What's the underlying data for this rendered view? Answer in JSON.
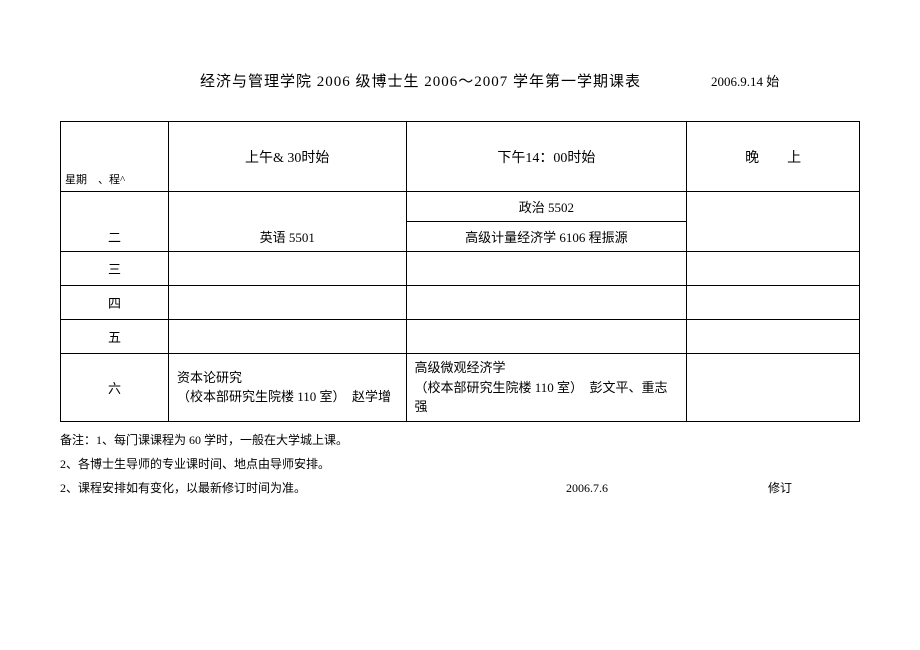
{
  "header": {
    "title": "经济与管理学院 2006 级博士生 2006〜2007 学年第一学期课表",
    "start_date": "2006.9.14 始"
  },
  "table": {
    "corner_label": "星期　、程^",
    "columns": {
      "morning": "上午& 30时始",
      "afternoon": "下午14：00时始",
      "evening": "晚　　上"
    },
    "rows": {
      "mon": {
        "day": "",
        "morning": "",
        "afternoon": "政治 5502",
        "evening": ""
      },
      "tue": {
        "day": "二",
        "morning": "英语 5501",
        "afternoon": "高级计量经济学 6106 程振源",
        "evening": ""
      },
      "wed": {
        "day": "三",
        "morning": "",
        "afternoon": "",
        "evening": ""
      },
      "thu": {
        "day": "四",
        "morning": "",
        "afternoon": "",
        "evening": ""
      },
      "fri": {
        "day": "五",
        "morning": "",
        "afternoon": "",
        "evening": ""
      },
      "sat": {
        "day": "六",
        "morning": "资本论研究\n（校本部研究生院楼 110 室）　赵学增",
        "afternoon": "高级微观经济学\n（校本部研究生院楼 110 室）　彭文平、重志强",
        "evening": ""
      }
    }
  },
  "notes": {
    "n1": "备注：1、每门课课程为 60 学时，一般在大学城上课。",
    "n2": "2、各博士生导师的专业课时间、地点由导师安排。",
    "n3": "2、课程安排如有变化，以最新修订时间为准。",
    "n3_date": "2006.7.6",
    "n3_rev": "修订"
  }
}
